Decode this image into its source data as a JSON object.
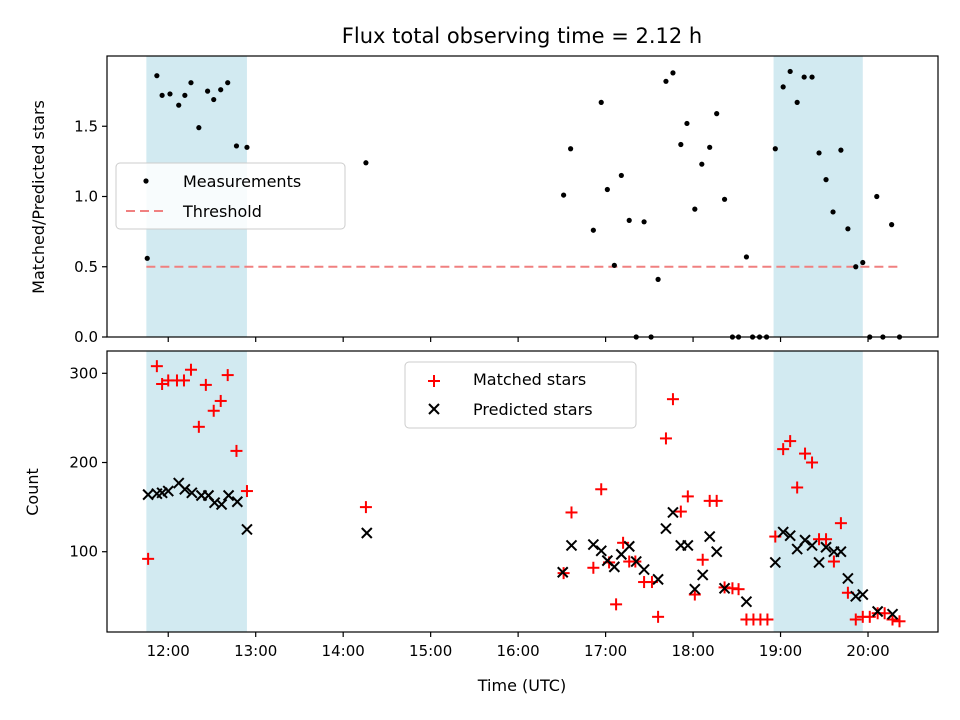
{
  "chart_data": {
    "title": "Flux total observing time = 2.12 h",
    "xlabel": "Time (UTC)",
    "xlim_hours": [
      11.3,
      20.8
    ],
    "x_ticks": [
      {
        "value": 12,
        "label": "12:00"
      },
      {
        "value": 13,
        "label": "13:00"
      },
      {
        "value": 14,
        "label": "14:00"
      },
      {
        "value": 15,
        "label": "15:00"
      },
      {
        "value": 16,
        "label": "16:00"
      },
      {
        "value": 17,
        "label": "17:00"
      },
      {
        "value": 18,
        "label": "18:00"
      },
      {
        "value": 19,
        "label": "19:00"
      },
      {
        "value": 20,
        "label": "20:00"
      }
    ],
    "shaded_spans_hours": [
      [
        11.75,
        12.9
      ],
      [
        18.92,
        19.94
      ]
    ],
    "shade_color": "#add8e6",
    "panels": [
      {
        "type": "scatter",
        "ylabel": "Matched/Predicted stars",
        "ylim": [
          0,
          2.0
        ],
        "y_ticks": [
          {
            "value": 0.0,
            "label": "0.0"
          },
          {
            "value": 0.5,
            "label": "0.5"
          },
          {
            "value": 1.0,
            "label": "1.0"
          },
          {
            "value": 1.5,
            "label": "1.5"
          }
        ],
        "threshold": {
          "value": 0.5,
          "label": "Threshold",
          "color": "#f08080",
          "x_range_hours": [
            11.75,
            20.38
          ]
        },
        "legend": {
          "placement": "center-left",
          "items": [
            "Measurements",
            "Threshold"
          ]
        },
        "series": [
          {
            "name": "Measurements",
            "color": "#000000",
            "marker": "dot",
            "points": [
              [
                11.76,
                0.56
              ],
              [
                11.87,
                1.86
              ],
              [
                11.93,
                1.72
              ],
              [
                12.02,
                1.73
              ],
              [
                12.12,
                1.65
              ],
              [
                12.19,
                1.72
              ],
              [
                12.26,
                1.81
              ],
              [
                12.35,
                1.49
              ],
              [
                12.45,
                1.75
              ],
              [
                12.52,
                1.69
              ],
              [
                12.6,
                1.76
              ],
              [
                12.68,
                1.81
              ],
              [
                12.78,
                1.36
              ],
              [
                12.9,
                1.35
              ],
              [
                14.26,
                1.24
              ],
              [
                16.52,
                1.01
              ],
              [
                16.6,
                1.34
              ],
              [
                16.86,
                0.76
              ],
              [
                16.95,
                1.67
              ],
              [
                17.02,
                1.05
              ],
              [
                17.1,
                0.51
              ],
              [
                17.18,
                1.15
              ],
              [
                17.27,
                0.83
              ],
              [
                17.35,
                0.0
              ],
              [
                17.44,
                0.82
              ],
              [
                17.52,
                0.0
              ],
              [
                17.6,
                0.41
              ],
              [
                17.69,
                1.82
              ],
              [
                17.77,
                1.88
              ],
              [
                17.86,
                1.37
              ],
              [
                17.93,
                1.52
              ],
              [
                18.02,
                0.91
              ],
              [
                18.1,
                1.23
              ],
              [
                18.19,
                1.35
              ],
              [
                18.27,
                1.59
              ],
              [
                18.36,
                0.98
              ],
              [
                18.45,
                0.0
              ],
              [
                18.52,
                0.0
              ],
              [
                18.61,
                0.57
              ],
              [
                18.68,
                0.0
              ],
              [
                18.76,
                0.0
              ],
              [
                18.84,
                0.0
              ],
              [
                18.94,
                1.34
              ],
              [
                19.03,
                1.78
              ],
              [
                19.11,
                1.89
              ],
              [
                19.19,
                1.67
              ],
              [
                19.27,
                1.85
              ],
              [
                19.36,
                1.85
              ],
              [
                19.44,
                1.31
              ],
              [
                19.52,
                1.12
              ],
              [
                19.6,
                0.89
              ],
              [
                19.69,
                1.33
              ],
              [
                19.77,
                0.77
              ],
              [
                19.86,
                0.5
              ],
              [
                19.94,
                0.53
              ],
              [
                20.02,
                0.0
              ],
              [
                20.1,
                1.0
              ],
              [
                20.17,
                0.0
              ],
              [
                20.27,
                0.8
              ],
              [
                20.36,
                0.0
              ]
            ]
          }
        ]
      },
      {
        "type": "scatter",
        "ylabel": "Count",
        "ylim": [
          10,
          325
        ],
        "y_ticks": [
          {
            "value": 100,
            "label": "100"
          },
          {
            "value": 200,
            "label": "200"
          },
          {
            "value": 300,
            "label": "300"
          }
        ],
        "legend": {
          "placement": "upper-center",
          "items": [
            "Matched stars",
            "Predicted stars"
          ]
        },
        "series": [
          {
            "name": "Matched stars",
            "color": "#ff0000",
            "marker": "plus",
            "points": [
              [
                11.77,
                92
              ],
              [
                11.87,
                308
              ],
              [
                11.93,
                288
              ],
              [
                12.0,
                292
              ],
              [
                12.1,
                292
              ],
              [
                12.18,
                292
              ],
              [
                12.26,
                304
              ],
              [
                12.35,
                240
              ],
              [
                12.43,
                287
              ],
              [
                12.52,
                258
              ],
              [
                12.6,
                269
              ],
              [
                12.68,
                298
              ],
              [
                12.78,
                213
              ],
              [
                12.9,
                168
              ],
              [
                14.26,
                150
              ],
              [
                16.52,
                76
              ],
              [
                16.61,
                144
              ],
              [
                16.86,
                82
              ],
              [
                16.95,
                170
              ],
              [
                17.04,
                88
              ],
              [
                17.12,
                41
              ],
              [
                17.2,
                110
              ],
              [
                17.27,
                89
              ],
              [
                17.34,
                89
              ],
              [
                17.44,
                66
              ],
              [
                17.53,
                66
              ],
              [
                17.6,
                27
              ],
              [
                17.69,
                227
              ],
              [
                17.77,
                271
              ],
              [
                17.86,
                145
              ],
              [
                17.94,
                162
              ],
              [
                18.02,
                52
              ],
              [
                18.11,
                91
              ],
              [
                18.19,
                157
              ],
              [
                18.27,
                157
              ],
              [
                18.36,
                60
              ],
              [
                18.45,
                59
              ],
              [
                18.52,
                58
              ],
              [
                18.61,
                24
              ],
              [
                18.69,
                24
              ],
              [
                18.77,
                24
              ],
              [
                18.85,
                24
              ],
              [
                18.94,
                117
              ],
              [
                19.03,
                215
              ],
              [
                19.11,
                224
              ],
              [
                19.19,
                172
              ],
              [
                19.28,
                210
              ],
              [
                19.36,
                200
              ],
              [
                19.44,
                114
              ],
              [
                19.52,
                114
              ],
              [
                19.61,
                89
              ],
              [
                19.69,
                132
              ],
              [
                19.77,
                54
              ],
              [
                19.86,
                24
              ],
              [
                19.94,
                27
              ],
              [
                20.02,
                27
              ],
              [
                20.11,
                31
              ],
              [
                20.19,
                31
              ],
              [
                20.28,
                24
              ],
              [
                20.36,
                22
              ]
            ]
          },
          {
            "name": "Predicted stars",
            "color": "#000000",
            "marker": "x",
            "points": [
              [
                11.77,
                164
              ],
              [
                11.87,
                165
              ],
              [
                11.93,
                166
              ],
              [
                12.0,
                168
              ],
              [
                12.12,
                177
              ],
              [
                12.19,
                170
              ],
              [
                12.27,
                166
              ],
              [
                12.38,
                163
              ],
              [
                12.46,
                163
              ],
              [
                12.53,
                155
              ],
              [
                12.61,
                153
              ],
              [
                12.69,
                163
              ],
              [
                12.79,
                156
              ],
              [
                12.9,
                125
              ],
              [
                14.27,
                121
              ],
              [
                16.51,
                77
              ],
              [
                16.61,
                107
              ],
              [
                16.86,
                108
              ],
              [
                16.95,
                101
              ],
              [
                17.02,
                90
              ],
              [
                17.1,
                83
              ],
              [
                17.18,
                97
              ],
              [
                17.27,
                106
              ],
              [
                17.35,
                89
              ],
              [
                17.44,
                80
              ],
              [
                17.6,
                69
              ],
              [
                17.69,
                126
              ],
              [
                17.77,
                144
              ],
              [
                17.86,
                107
              ],
              [
                17.94,
                107
              ],
              [
                18.02,
                58
              ],
              [
                18.11,
                74
              ],
              [
                18.19,
                117
              ],
              [
                18.27,
                100
              ],
              [
                18.36,
                59
              ],
              [
                18.61,
                44
              ],
              [
                18.94,
                88
              ],
              [
                19.03,
                122
              ],
              [
                19.11,
                118
              ],
              [
                19.19,
                103
              ],
              [
                19.28,
                113
              ],
              [
                19.36,
                107
              ],
              [
                19.44,
                88
              ],
              [
                19.52,
                105
              ],
              [
                19.61,
                100
              ],
              [
                19.69,
                100
              ],
              [
                19.77,
                70
              ],
              [
                19.86,
                50
              ],
              [
                19.94,
                52
              ],
              [
                20.11,
                33
              ],
              [
                20.28,
                30
              ]
            ]
          }
        ]
      }
    ]
  }
}
